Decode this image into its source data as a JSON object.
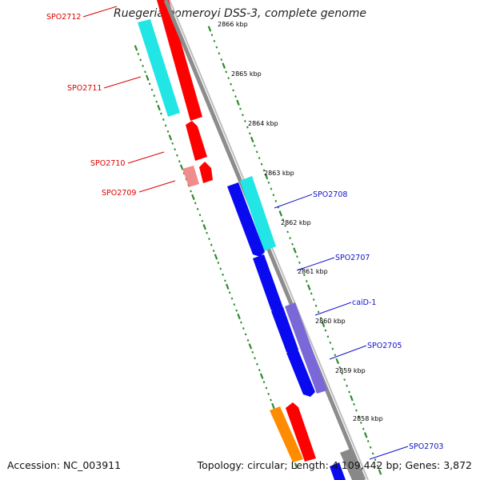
{
  "title": "Ruegeria pomeroyi DSS-3, complete genome",
  "footer": {
    "accession": "Accession: NC_003911",
    "summary": "Topology: circular; Length: 4,109,442 bp; Genes: 3,872"
  },
  "colors": {
    "backbone": "#8c8c8c",
    "tick": "#2e8b2e",
    "forward_label": "#dd0000",
    "reverse_label": "#1111cc",
    "red": "#ff0000",
    "cyan": "#22e5e5",
    "blue": "#0a0af0",
    "purple": "#7b68d8",
    "orange": "#ff8c00",
    "grey": "#888888"
  },
  "ticks": [
    "2866 kbp",
    "2865 kbp",
    "2864 kbp",
    "2863 kbp",
    "2862 kbp",
    "2861 kbp",
    "2860 kbp",
    "2859 kbp",
    "2858 kbp"
  ],
  "gene_labels_left": [
    "SPO2712",
    "SPO2711",
    "SPO2710",
    "SPO2709"
  ],
  "gene_labels_right": [
    "SPO2708",
    "SPO2707",
    "caiD-1",
    "SPO2705",
    "SPO2703"
  ]
}
